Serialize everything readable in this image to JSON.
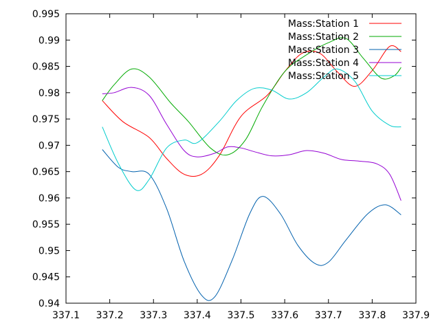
{
  "chart_data": {
    "type": "line",
    "title": "",
    "xlabel": "",
    "ylabel": "",
    "xlim": [
      337.1,
      337.9
    ],
    "ylim": [
      0.94,
      0.995
    ],
    "grid": false,
    "legend_position": "top-right",
    "x_ticks": [
      "337.1",
      "337.2",
      "337.3",
      "337.4",
      "337.5",
      "337.6",
      "337.7",
      "337.8",
      "337.9"
    ],
    "y_ticks": [
      "0.94",
      "0.945",
      "0.95",
      "0.955",
      "0.96",
      "0.965",
      "0.97",
      "0.975",
      "0.98",
      "0.985",
      "0.99",
      "0.995"
    ],
    "series": [
      {
        "name": "Mass:Station 1",
        "color": "#ff0000",
        "points": [
          [
            337.183,
            0.9785
          ],
          [
            337.23,
            0.9745
          ],
          [
            337.29,
            0.9715
          ],
          [
            337.33,
            0.9675
          ],
          [
            337.37,
            0.9645
          ],
          [
            337.41,
            0.9645
          ],
          [
            337.45,
            0.968
          ],
          [
            337.5,
            0.9755
          ],
          [
            337.56,
            0.9795
          ],
          [
            337.6,
            0.984
          ],
          [
            337.64,
            0.9875
          ],
          [
            337.68,
            0.9875
          ],
          [
            337.72,
            0.984
          ],
          [
            337.76,
            0.9812
          ],
          [
            337.8,
            0.9842
          ],
          [
            337.84,
            0.9888
          ],
          [
            337.866,
            0.9878
          ]
        ]
      },
      {
        "name": "Mass:Station 2",
        "color": "#00aa00",
        "points": [
          [
            337.183,
            0.9785
          ],
          [
            337.21,
            0.9815
          ],
          [
            337.25,
            0.9845
          ],
          [
            337.29,
            0.983
          ],
          [
            337.34,
            0.978
          ],
          [
            337.38,
            0.9745
          ],
          [
            337.43,
            0.9695
          ],
          [
            337.47,
            0.9682
          ],
          [
            337.51,
            0.971
          ],
          [
            337.55,
            0.9775
          ],
          [
            337.6,
            0.984
          ],
          [
            337.65,
            0.9872
          ],
          [
            337.7,
            0.9895
          ],
          [
            337.74,
            0.9903
          ],
          [
            337.78,
            0.9865
          ],
          [
            337.82,
            0.9828
          ],
          [
            337.85,
            0.9832
          ],
          [
            337.866,
            0.9848
          ]
        ]
      },
      {
        "name": "Mass:Station 3",
        "color": "#0060ad",
        "points": [
          [
            337.183,
            0.9692
          ],
          [
            337.22,
            0.9658
          ],
          [
            337.25,
            0.965
          ],
          [
            337.29,
            0.9645
          ],
          [
            337.33,
            0.958
          ],
          [
            337.37,
            0.948
          ],
          [
            337.41,
            0.9415
          ],
          [
            337.44,
            0.9412
          ],
          [
            337.48,
            0.9482
          ],
          [
            337.52,
            0.957
          ],
          [
            337.55,
            0.9603
          ],
          [
            337.59,
            0.957
          ],
          [
            337.63,
            0.951
          ],
          [
            337.67,
            0.9475
          ],
          [
            337.7,
            0.9478
          ],
          [
            337.74,
            0.952
          ],
          [
            337.79,
            0.957
          ],
          [
            337.83,
            0.9587
          ],
          [
            337.866,
            0.9568
          ]
        ]
      },
      {
        "name": "Mass:Station 4",
        "color": "#9400d3",
        "points": [
          [
            337.183,
            0.9798
          ],
          [
            337.21,
            0.98
          ],
          [
            337.25,
            0.981
          ],
          [
            337.29,
            0.9795
          ],
          [
            337.33,
            0.974
          ],
          [
            337.37,
            0.969
          ],
          [
            337.4,
            0.9678
          ],
          [
            337.44,
            0.9685
          ],
          [
            337.47,
            0.9697
          ],
          [
            337.5,
            0.9695
          ],
          [
            337.53,
            0.9688
          ],
          [
            337.57,
            0.968
          ],
          [
            337.61,
            0.9682
          ],
          [
            337.65,
            0.969
          ],
          [
            337.69,
            0.9685
          ],
          [
            337.73,
            0.9673
          ],
          [
            337.77,
            0.967
          ],
          [
            337.81,
            0.9665
          ],
          [
            337.84,
            0.9645
          ],
          [
            337.866,
            0.9595
          ]
        ]
      },
      {
        "name": "Mass:Station 5",
        "color": "#00cccc",
        "points": [
          [
            337.183,
            0.9735
          ],
          [
            337.22,
            0.9665
          ],
          [
            337.26,
            0.9615
          ],
          [
            337.29,
            0.9635
          ],
          [
            337.33,
            0.9695
          ],
          [
            337.37,
            0.971
          ],
          [
            337.4,
            0.9705
          ],
          [
            337.45,
            0.9745
          ],
          [
            337.49,
            0.9785
          ],
          [
            337.53,
            0.9808
          ],
          [
            337.57,
            0.9805
          ],
          [
            337.61,
            0.9788
          ],
          [
            337.65,
            0.98
          ],
          [
            337.69,
            0.983
          ],
          [
            337.72,
            0.9845
          ],
          [
            337.76,
            0.9822
          ],
          [
            337.8,
            0.9765
          ],
          [
            337.84,
            0.9738
          ],
          [
            337.866,
            0.9735
          ]
        ]
      }
    ]
  }
}
